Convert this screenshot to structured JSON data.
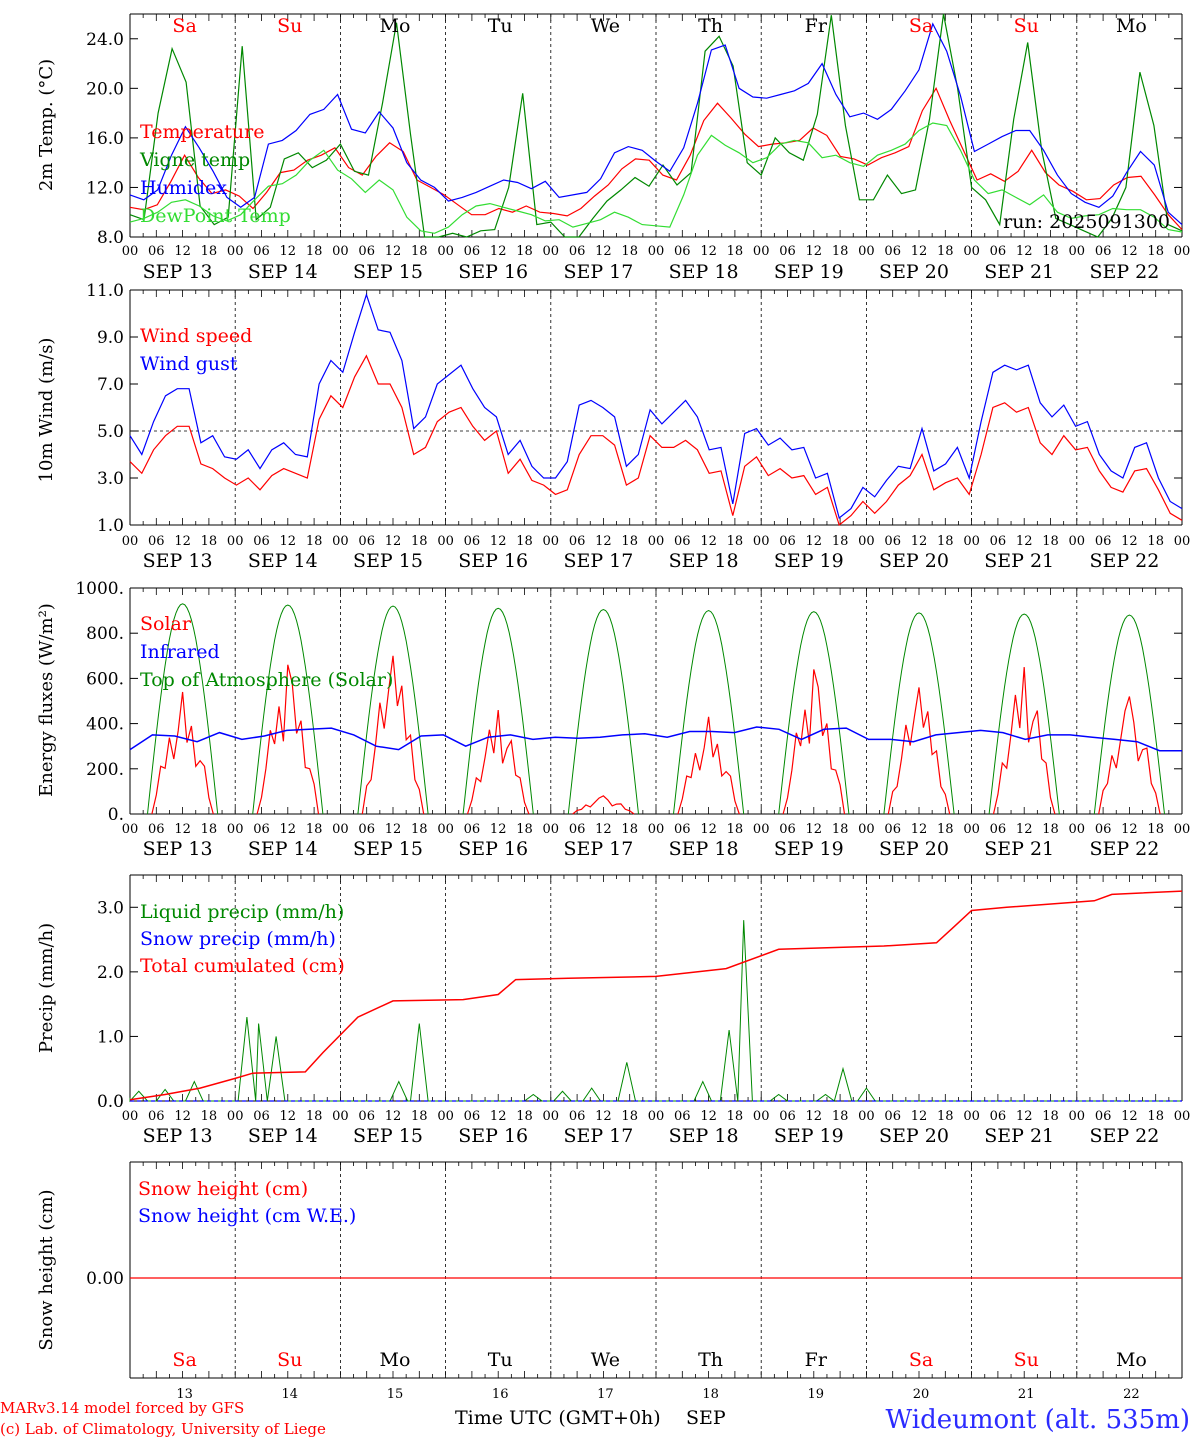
{
  "run_label": "run: 2025091300",
  "footer": {
    "credit_line1": "MARv3.14 model forced by GFS",
    "credit_line2": "(c) Lab. of Climatology, University of Liege",
    "time_axis_label": "Time UTC (GMT+0h)",
    "month_label": "SEP",
    "station": "Wideumont (alt. 535m)"
  },
  "colors": {
    "red": "#ff0000",
    "blue": "#0000ff",
    "green": "#008800",
    "lightgreen": "#33dd33",
    "grid": "#000000"
  },
  "chart_data": [
    {
      "id": "temp",
      "type": "line",
      "ylabel": "2m Temp. (°C)",
      "ylim": [
        8,
        26
      ],
      "yticks": [
        "8.0",
        "12.0",
        "16.0",
        "20.0",
        "24.0"
      ],
      "ytick_values": [
        8,
        12,
        16,
        20,
        24
      ],
      "day_names": [
        "Sa",
        "Su",
        "Mo",
        "Tu",
        "We",
        "Th",
        "Fr",
        "Sa",
        "Su",
        "Mo"
      ],
      "x_hours": "0..234 step 6 (00 = Sep 13 00 UTC)",
      "series": [
        {
          "name": "Temperature",
          "color": "red",
          "values": [
            10.4,
            10.2,
            10.6,
            12.5,
            14.6,
            12.8,
            11.5,
            11.8,
            11.3,
            10.3,
            11.6,
            13.2,
            13.4,
            14.2,
            14.6,
            15.2,
            13.6,
            13.0,
            14.5,
            15.6,
            14.9,
            12.6,
            12.0,
            11.4,
            10.6,
            9.8,
            9.8,
            10.3,
            10.0,
            10.5,
            10.0,
            9.9,
            9.7,
            10.3,
            11.3,
            12.2,
            13.5,
            14.3,
            14.2,
            13.0,
            12.6,
            14.6,
            17.4,
            18.8,
            17.6,
            16.3,
            15.3,
            15.5,
            15.6,
            15.8,
            16.8,
            16.2,
            14.5,
            14.3,
            13.8,
            14.4,
            14.8,
            15.3,
            18.2,
            20.0,
            17.4,
            15.0,
            12.6,
            13.1,
            12.5,
            13.3,
            15.0,
            13.2,
            12.2,
            11.7,
            11.0,
            11.1,
            12.2,
            12.8,
            12.9,
            11.4,
            9.8,
            8.6
          ]
        },
        {
          "name": "Vigne temp",
          "color": "green",
          "values": [
            9.8,
            9.4,
            18.0,
            23.2,
            20.5,
            10.5,
            9.0,
            9.6,
            23.4,
            9.4,
            10.4,
            14.3,
            14.8,
            13.6,
            14.2,
            15.5,
            13.3,
            13.0,
            18.8,
            25.3,
            16.3,
            7.5,
            7.0,
            8.3,
            8.0,
            8.5,
            8.6,
            12.0,
            19.6,
            9.0,
            9.2,
            7.4,
            8.0,
            9.5,
            10.9,
            11.8,
            12.8,
            12.1,
            13.8,
            12.2,
            13.2,
            23.0,
            24.2,
            21.8,
            14.0,
            13.0,
            16.0,
            14.8,
            14.2,
            17.9,
            25.9,
            17.0,
            11.0,
            11.0,
            13.0,
            11.5,
            11.8,
            17.5,
            27.0,
            20.0,
            12.0,
            11.0,
            9.0,
            17.5,
            23.7,
            15.0,
            9.5,
            9.0,
            8.5,
            8.0,
            9.5,
            12.0,
            21.3,
            17.0,
            9.0,
            8.5
          ]
        },
        {
          "name": "Humidex",
          "color": "blue",
          "values": [
            11.4,
            11.0,
            11.8,
            14.6,
            16.9,
            15.2,
            13.3,
            11.2,
            10.4,
            11.2,
            15.5,
            15.8,
            16.6,
            17.9,
            18.3,
            19.5,
            16.7,
            16.4,
            18.1,
            16.8,
            14.0,
            12.6,
            12.0,
            10.9,
            11.2,
            11.6,
            12.1,
            12.6,
            12.4,
            11.9,
            12.5,
            11.2,
            11.4,
            11.6,
            12.7,
            14.8,
            15.3,
            15.0,
            14.1,
            13.3,
            15.2,
            18.8,
            23.1,
            23.5,
            20.0,
            19.3,
            19.2,
            19.5,
            19.8,
            20.4,
            22.0,
            19.5,
            17.7,
            18.0,
            17.5,
            18.3,
            19.8,
            21.5,
            25.2,
            23.0,
            19.4,
            14.9,
            15.5,
            16.1,
            16.6,
            16.6,
            15.0,
            13.0,
            11.5,
            10.8,
            10.4,
            11.3,
            13.2,
            14.9,
            13.8,
            10.0,
            9.0
          ]
        },
        {
          "name": "DewPoint Temp",
          "color": "lightgreen",
          "values": [
            9.2,
            9.5,
            10.0,
            10.8,
            11.0,
            10.5,
            9.7,
            9.3,
            9.8,
            11.0,
            12.1,
            12.3,
            13.0,
            14.2,
            15.0,
            13.4,
            12.7,
            11.6,
            12.6,
            11.8,
            9.6,
            8.5,
            8.3,
            8.8,
            9.8,
            10.5,
            10.7,
            10.4,
            10.1,
            9.8,
            9.3,
            9.4,
            8.8,
            9.1,
            9.4,
            10.0,
            9.6,
            9.0,
            8.9,
            8.8,
            11.4,
            14.6,
            16.2,
            15.4,
            14.8,
            14.0,
            14.4,
            15.5,
            15.8,
            15.6,
            14.4,
            14.6,
            14.0,
            13.7,
            14.6,
            15.0,
            15.5,
            16.6,
            17.2,
            17.0,
            15.0,
            12.6,
            11.5,
            11.8,
            11.2,
            10.6,
            11.4,
            10.0,
            9.5,
            9.7,
            9.8,
            10.3,
            10.2,
            10.2,
            9.6,
            8.6,
            8.4
          ]
        }
      ]
    },
    {
      "id": "wind",
      "type": "line",
      "ylabel": "10m Wind (m/s)",
      "ylim": [
        1,
        11
      ],
      "yticks": [
        "1.0",
        "3.0",
        "5.0",
        "7.0",
        "9.0",
        "11.0"
      ],
      "ytick_values": [
        1,
        3,
        5,
        7,
        9,
        11
      ],
      "reference_line": 5.0,
      "series": [
        {
          "name": "Wind speed",
          "color": "red",
          "values": [
            3.7,
            3.2,
            4.2,
            4.8,
            5.2,
            5.2,
            3.6,
            3.4,
            3.0,
            2.7,
            3.0,
            2.5,
            3.1,
            3.4,
            3.2,
            3.0,
            5.5,
            6.5,
            6.0,
            7.3,
            8.2,
            7.0,
            7.0,
            6.0,
            4.0,
            4.3,
            5.4,
            5.8,
            6.0,
            5.2,
            4.6,
            5.0,
            3.2,
            3.8,
            2.9,
            2.7,
            2.3,
            2.5,
            4.0,
            4.8,
            4.8,
            4.4,
            2.7,
            3.0,
            4.8,
            4.3,
            4.3,
            4.6,
            4.2,
            3.2,
            3.3,
            1.4,
            3.5,
            3.9,
            3.1,
            3.4,
            3.0,
            3.1,
            2.3,
            2.6,
            1.0,
            1.4,
            2.0,
            1.5,
            2.0,
            2.7,
            3.1,
            4.0,
            2.5,
            2.8,
            3.0,
            2.3,
            4.0,
            6.0,
            6.2,
            5.8,
            6.0,
            4.5,
            4.0,
            4.8,
            4.2,
            4.3,
            3.3,
            2.6,
            2.4,
            3.3,
            3.4,
            2.5,
            1.5,
            1.2
          ]
        },
        {
          "name": "Wind gust",
          "color": "blue",
          "values": [
            4.8,
            4.0,
            5.4,
            6.5,
            6.8,
            6.8,
            4.5,
            4.8,
            3.9,
            3.8,
            4.2,
            3.4,
            4.2,
            4.5,
            4.0,
            3.9,
            7.0,
            8.0,
            7.5,
            9.2,
            10.8,
            9.3,
            9.2,
            8.0,
            5.1,
            5.6,
            7.0,
            7.4,
            7.8,
            6.8,
            6.0,
            5.6,
            4.0,
            4.6,
            3.5,
            3.0,
            3.0,
            3.7,
            6.1,
            6.3,
            6.0,
            5.6,
            3.5,
            4.0,
            5.9,
            5.3,
            5.8,
            6.3,
            5.6,
            4.2,
            4.3,
            1.9,
            4.9,
            5.1,
            4.4,
            4.7,
            4.2,
            4.3,
            3.0,
            3.2,
            1.3,
            1.7,
            2.6,
            2.2,
            2.9,
            3.5,
            3.4,
            5.1,
            3.3,
            3.6,
            4.3,
            3.0,
            5.4,
            7.5,
            7.8,
            7.6,
            7.8,
            6.2,
            5.6,
            6.1,
            5.2,
            5.4,
            4.0,
            3.3,
            3.0,
            4.3,
            4.5,
            3.0,
            2.0,
            1.7
          ]
        }
      ]
    },
    {
      "id": "energy",
      "type": "line",
      "ylabel": "Energy fluxes (W/m²)",
      "ylim": [
        0,
        1000
      ],
      "yticks": [
        "0.",
        "200.",
        "400.",
        "600.",
        "800.",
        "1000."
      ],
      "ytick_values": [
        0,
        200,
        400,
        600,
        800,
        1000
      ],
      "series": [
        {
          "name": "Solar",
          "color": "red",
          "peaks": [
            540,
            660,
            700,
            460,
            80,
            430,
            640,
            560,
            650,
            520
          ]
        },
        {
          "name": "Infrared",
          "color": "blue",
          "values": [
            285,
            350,
            345,
            320,
            360,
            330,
            345,
            370,
            375,
            380,
            350,
            300,
            285,
            345,
            350,
            300,
            340,
            350,
            330,
            340,
            335,
            340,
            350,
            355,
            340,
            365,
            365,
            360,
            385,
            375,
            330,
            375,
            380,
            330,
            330,
            320,
            350,
            360,
            370,
            360,
            330,
            350,
            350,
            340,
            330,
            320,
            280,
            280
          ]
        },
        {
          "name": "Top of Atmosphere (Solar)",
          "color": "green",
          "peaks": [
            930,
            925,
            920,
            910,
            905,
            900,
            895,
            890,
            885,
            880
          ]
        }
      ]
    },
    {
      "id": "precip",
      "type": "line",
      "ylabel": "Precip (mm/h)",
      "ylim": [
        0,
        3.5
      ],
      "yticks": [
        "0.0",
        "1.0",
        "2.0",
        "3.0"
      ],
      "ytick_values": [
        0,
        1,
        2,
        3
      ],
      "series": [
        {
          "name": "Liquid precip (mm/h)",
          "color": "green",
          "events": [
            [
              3,
              0.15
            ],
            [
              12,
              0.18
            ],
            [
              22,
              0.3
            ],
            [
              40,
              1.3
            ],
            [
              44,
              1.2
            ],
            [
              50,
              1.0
            ],
            [
              62,
              0.0
            ],
            [
              92,
              0.3
            ],
            [
              99,
              1.2
            ],
            [
              138,
              0.1
            ],
            [
              148,
              0.15
            ],
            [
              158,
              0.2
            ],
            [
              170,
              0.6
            ],
            [
              196,
              0.3
            ],
            [
              205,
              1.1
            ],
            [
              210,
              2.8
            ],
            [
              222,
              0.1
            ],
            [
              238,
              0.1
            ],
            [
              244,
              0.5
            ],
            [
              252,
              0.2
            ]
          ]
        },
        {
          "name": "Snow precip (mm/h)",
          "color": "blue",
          "values": [
            0
          ]
        },
        {
          "name": "Total cumulated (cm)",
          "color": "red",
          "points": [
            [
              0,
              0.02
            ],
            [
              12,
              0.1
            ],
            [
              24,
              0.2
            ],
            [
              36,
              0.35
            ],
            [
              42,
              0.43
            ],
            [
              60,
              0.45
            ],
            [
              66,
              0.75
            ],
            [
              78,
              1.3
            ],
            [
              90,
              1.55
            ],
            [
              114,
              1.57
            ],
            [
              126,
              1.65
            ],
            [
              132,
              1.88
            ],
            [
              150,
              1.9
            ],
            [
              180,
              1.93
            ],
            [
              204,
              2.05
            ],
            [
              222,
              2.35
            ],
            [
              258,
              2.4
            ],
            [
              276,
              2.45
            ],
            [
              282,
              2.7
            ],
            [
              288,
              2.95
            ],
            [
              300,
              3.0
            ],
            [
              330,
              3.1
            ],
            [
              336,
              3.2
            ],
            [
              360,
              3.25
            ]
          ]
        }
      ]
    },
    {
      "id": "snow",
      "type": "line",
      "ylabel": "Snow height (cm)",
      "yticks": [
        "0.00"
      ],
      "ytick_values": [
        0
      ],
      "series": [
        {
          "name": "Snow height (cm)",
          "color": "red",
          "values": [
            0
          ]
        },
        {
          "name": "Snow height (cm W.E.)",
          "color": "blue",
          "values": [
            0
          ]
        }
      ]
    }
  ],
  "x_axis": {
    "hour_labels": [
      "00",
      "06",
      "12",
      "18"
    ],
    "date_labels": [
      "SEP 13",
      "SEP 14",
      "SEP 15",
      "SEP 16",
      "SEP 17",
      "SEP 18",
      "SEP 19",
      "SEP 20",
      "SEP 21",
      "SEP 22"
    ],
    "day_numbers": [
      "13",
      "14",
      "15",
      "16",
      "17",
      "18",
      "19",
      "20",
      "21",
      "22"
    ],
    "weekend_days": [
      "Sa",
      "Su"
    ]
  }
}
